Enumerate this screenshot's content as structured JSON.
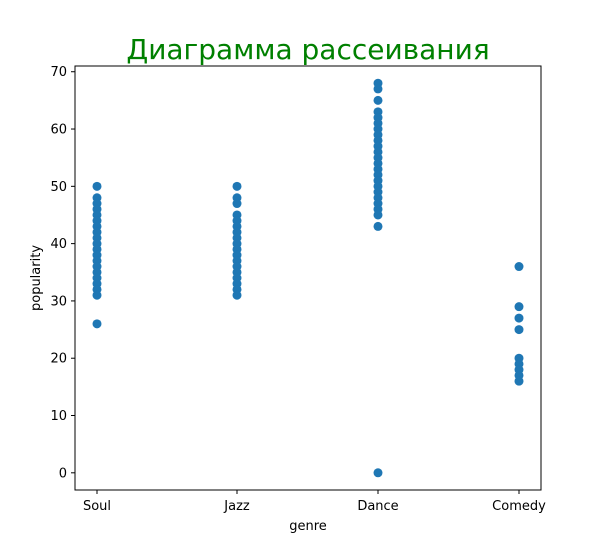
{
  "chart_data": {
    "type": "scatter",
    "title": "Диаграмма рассеивания",
    "xlabel": "genre",
    "ylabel": "popularity",
    "categories": [
      "Soul",
      "Jazz",
      "Dance",
      "Comedy"
    ],
    "ylim": [
      -3,
      71
    ],
    "yticks": [
      0,
      10,
      20,
      30,
      40,
      50,
      60,
      70
    ],
    "grid": false,
    "colors": {
      "title": "#008000",
      "marker": "#1f77b4",
      "axis": "#000000"
    },
    "series": [
      {
        "points": [
          {
            "x": "Soul",
            "y": 50
          },
          {
            "x": "Soul",
            "y": 48
          },
          {
            "x": "Soul",
            "y": 47
          },
          {
            "x": "Soul",
            "y": 46
          },
          {
            "x": "Soul",
            "y": 45
          },
          {
            "x": "Soul",
            "y": 44
          },
          {
            "x": "Soul",
            "y": 43
          },
          {
            "x": "Soul",
            "y": 42
          },
          {
            "x": "Soul",
            "y": 41
          },
          {
            "x": "Soul",
            "y": 40
          },
          {
            "x": "Soul",
            "y": 39
          },
          {
            "x": "Soul",
            "y": 38
          },
          {
            "x": "Soul",
            "y": 37
          },
          {
            "x": "Soul",
            "y": 36
          },
          {
            "x": "Soul",
            "y": 35
          },
          {
            "x": "Soul",
            "y": 34
          },
          {
            "x": "Soul",
            "y": 33
          },
          {
            "x": "Soul",
            "y": 32
          },
          {
            "x": "Soul",
            "y": 31
          },
          {
            "x": "Soul",
            "y": 26
          },
          {
            "x": "Jazz",
            "y": 50
          },
          {
            "x": "Jazz",
            "y": 48
          },
          {
            "x": "Jazz",
            "y": 47
          },
          {
            "x": "Jazz",
            "y": 45
          },
          {
            "x": "Jazz",
            "y": 44
          },
          {
            "x": "Jazz",
            "y": 43
          },
          {
            "x": "Jazz",
            "y": 42
          },
          {
            "x": "Jazz",
            "y": 41
          },
          {
            "x": "Jazz",
            "y": 40
          },
          {
            "x": "Jazz",
            "y": 39
          },
          {
            "x": "Jazz",
            "y": 38
          },
          {
            "x": "Jazz",
            "y": 37
          },
          {
            "x": "Jazz",
            "y": 36
          },
          {
            "x": "Jazz",
            "y": 35
          },
          {
            "x": "Jazz",
            "y": 34
          },
          {
            "x": "Jazz",
            "y": 33
          },
          {
            "x": "Jazz",
            "y": 32
          },
          {
            "x": "Jazz",
            "y": 31
          },
          {
            "x": "Dance",
            "y": 68
          },
          {
            "x": "Dance",
            "y": 67
          },
          {
            "x": "Dance",
            "y": 65
          },
          {
            "x": "Dance",
            "y": 63
          },
          {
            "x": "Dance",
            "y": 62
          },
          {
            "x": "Dance",
            "y": 61
          },
          {
            "x": "Dance",
            "y": 60
          },
          {
            "x": "Dance",
            "y": 59
          },
          {
            "x": "Dance",
            "y": 58
          },
          {
            "x": "Dance",
            "y": 57
          },
          {
            "x": "Dance",
            "y": 56
          },
          {
            "x": "Dance",
            "y": 55
          },
          {
            "x": "Dance",
            "y": 54
          },
          {
            "x": "Dance",
            "y": 53
          },
          {
            "x": "Dance",
            "y": 52
          },
          {
            "x": "Dance",
            "y": 51
          },
          {
            "x": "Dance",
            "y": 50
          },
          {
            "x": "Dance",
            "y": 49
          },
          {
            "x": "Dance",
            "y": 48
          },
          {
            "x": "Dance",
            "y": 47
          },
          {
            "x": "Dance",
            "y": 46
          },
          {
            "x": "Dance",
            "y": 45
          },
          {
            "x": "Dance",
            "y": 43
          },
          {
            "x": "Dance",
            "y": 0
          },
          {
            "x": "Comedy",
            "y": 36
          },
          {
            "x": "Comedy",
            "y": 29
          },
          {
            "x": "Comedy",
            "y": 27
          },
          {
            "x": "Comedy",
            "y": 25
          },
          {
            "x": "Comedy",
            "y": 20
          },
          {
            "x": "Comedy",
            "y": 19
          },
          {
            "x": "Comedy",
            "y": 18
          },
          {
            "x": "Comedy",
            "y": 17
          },
          {
            "x": "Comedy",
            "y": 16
          }
        ]
      }
    ]
  }
}
